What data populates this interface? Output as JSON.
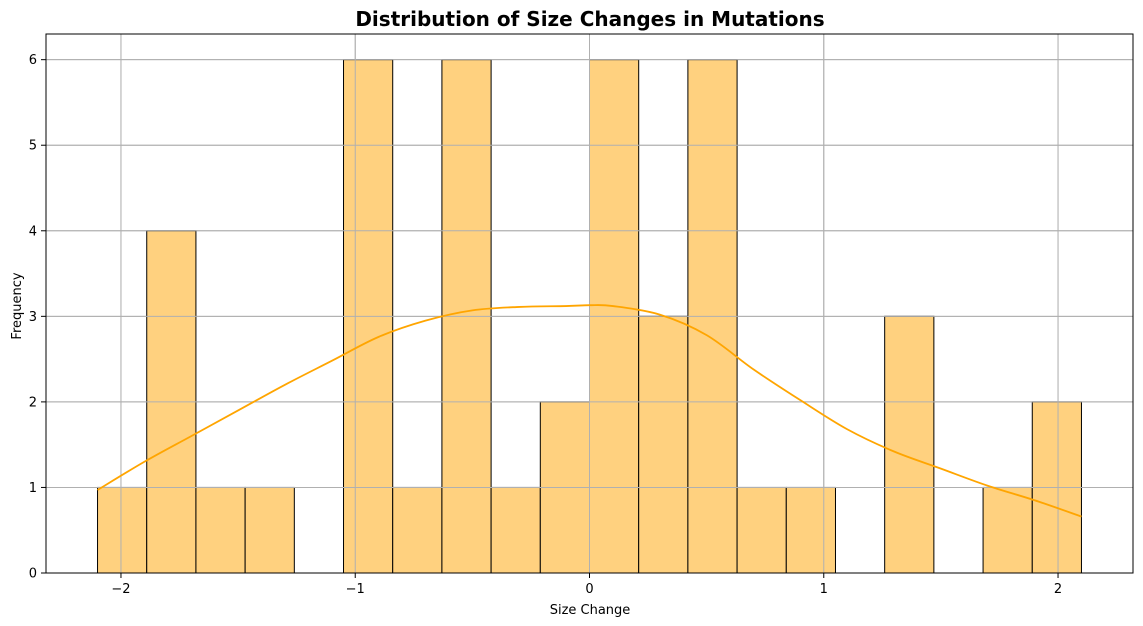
{
  "chart_data": {
    "type": "bar",
    "subtype": "histogram",
    "title": "Distribution of Size Changes in Mutations",
    "xlabel": "Size Change",
    "ylabel": "Frequency",
    "xlim": [
      -2.32,
      2.32
    ],
    "ylim": [
      0,
      6.3
    ],
    "xticks": [
      -2,
      -1,
      0,
      1,
      2
    ],
    "xtick_labels": [
      "−2",
      "−1",
      "0",
      "1",
      "2"
    ],
    "yticks": [
      0,
      1,
      2,
      3,
      4,
      5,
      6
    ],
    "ytick_labels": [
      "0",
      "1",
      "2",
      "3",
      "4",
      "5",
      "6"
    ],
    "grid": true,
    "legend": "none",
    "bins": [
      {
        "x0": -2.1,
        "x1": -1.89,
        "count": 1
      },
      {
        "x0": -1.89,
        "x1": -1.68,
        "count": 4
      },
      {
        "x0": -1.68,
        "x1": -1.47,
        "count": 1
      },
      {
        "x0": -1.47,
        "x1": -1.26,
        "count": 1
      },
      {
        "x0": -1.26,
        "x1": -1.05,
        "count": 0
      },
      {
        "x0": -1.05,
        "x1": -0.84,
        "count": 6
      },
      {
        "x0": -0.84,
        "x1": -0.63,
        "count": 1
      },
      {
        "x0": -0.63,
        "x1": -0.42,
        "count": 6
      },
      {
        "x0": -0.42,
        "x1": -0.21,
        "count": 1
      },
      {
        "x0": -0.21,
        "x1": 0.0,
        "count": 2
      },
      {
        "x0": 0.0,
        "x1": 0.21,
        "count": 6
      },
      {
        "x0": 0.21,
        "x1": 0.42,
        "count": 3
      },
      {
        "x0": 0.42,
        "x1": 0.63,
        "count": 6
      },
      {
        "x0": 0.63,
        "x1": 0.84,
        "count": 1
      },
      {
        "x0": 0.84,
        "x1": 1.05,
        "count": 1
      },
      {
        "x0": 1.05,
        "x1": 1.26,
        "count": 0
      },
      {
        "x0": 1.26,
        "x1": 1.47,
        "count": 3
      },
      {
        "x0": 1.47,
        "x1": 1.68,
        "count": 0
      },
      {
        "x0": 1.68,
        "x1": 1.89,
        "count": 1
      },
      {
        "x0": 1.89,
        "x1": 2.1,
        "count": 2
      }
    ],
    "kde": {
      "x": [
        -2.1,
        -1.9,
        -1.7,
        -1.5,
        -1.3,
        -1.1,
        -0.9,
        -0.7,
        -0.5,
        -0.3,
        -0.1,
        0.0,
        0.1,
        0.3,
        0.5,
        0.7,
        0.9,
        1.1,
        1.3,
        1.5,
        1.7,
        1.9,
        2.1
      ],
      "y": [
        0.97,
        1.3,
        1.6,
        1.9,
        2.2,
        2.48,
        2.76,
        2.95,
        3.07,
        3.11,
        3.12,
        3.13,
        3.12,
        3.02,
        2.78,
        2.38,
        2.02,
        1.68,
        1.42,
        1.22,
        1.02,
        0.85,
        0.66
      ]
    },
    "colors": {
      "bar_fill": "#ffd17f",
      "bar_edge": "#000000",
      "kde_line": "#ffa500",
      "grid": "#b0b0b0"
    }
  }
}
